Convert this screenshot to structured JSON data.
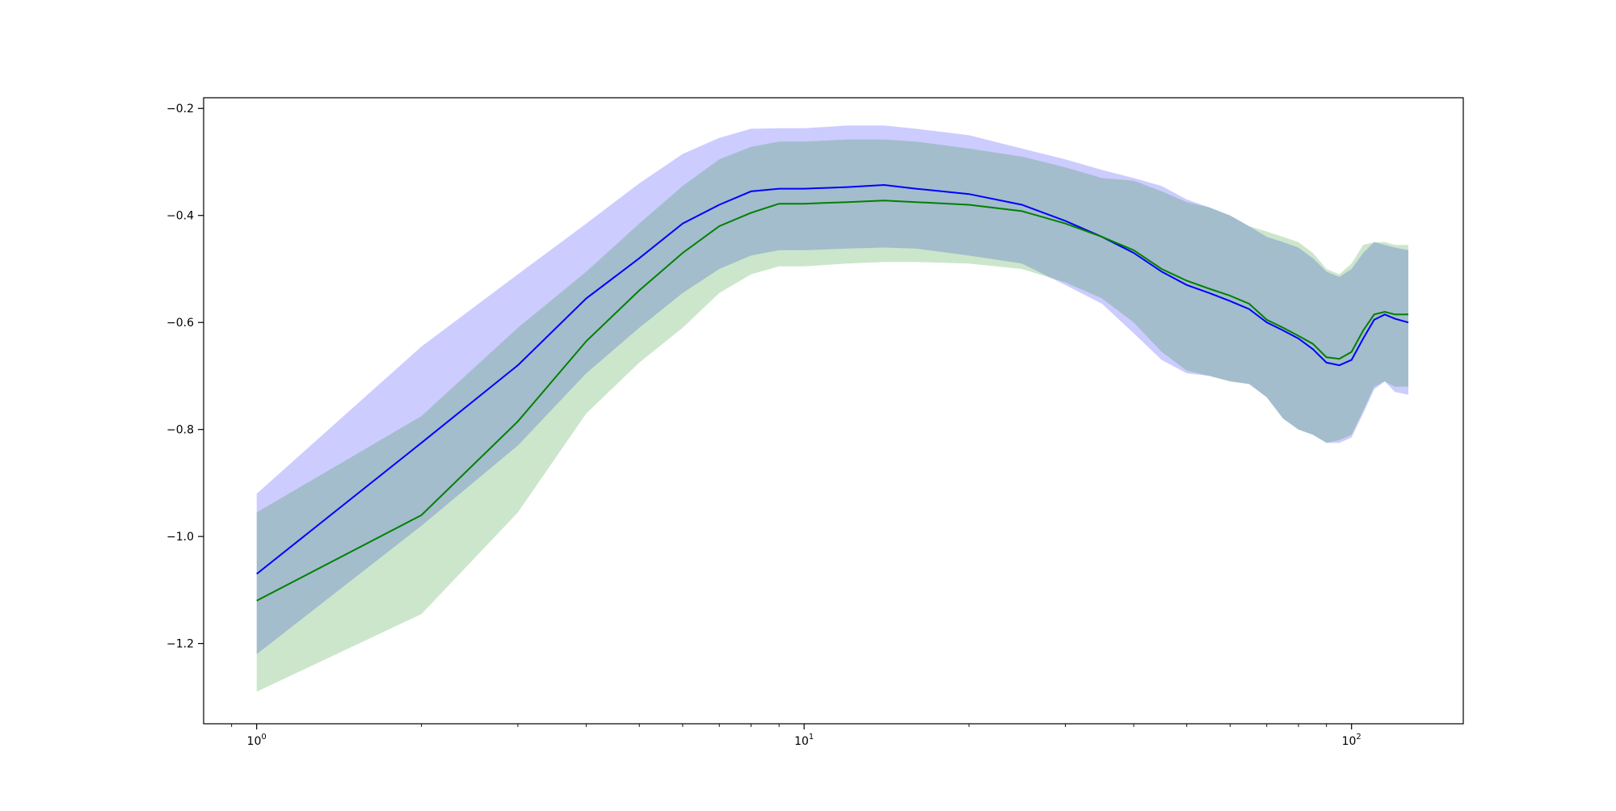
{
  "chart_data": {
    "type": "line",
    "xscale": "log",
    "xlim": [
      0.8,
      160
    ],
    "ylim": [
      -1.35,
      -0.18
    ],
    "grid": false,
    "title": "",
    "xlabel": "",
    "ylabel": "",
    "x_ticks": [
      {
        "value": 1,
        "base": "10",
        "exp": "0"
      },
      {
        "value": 10,
        "base": "10",
        "exp": "1"
      },
      {
        "value": 100,
        "base": "10",
        "exp": "2"
      }
    ],
    "y_ticks": [
      {
        "value": -0.2,
        "label": "−0.2"
      },
      {
        "value": -0.4,
        "label": "−0.4"
      },
      {
        "value": -0.6,
        "label": "−0.6"
      },
      {
        "value": -0.8,
        "label": "−0.8"
      },
      {
        "value": -1.0,
        "label": "−1.0"
      },
      {
        "value": -1.2,
        "label": "−1.2"
      }
    ],
    "series": [
      {
        "color": "#0000ff",
        "band_color": "#0000ff",
        "x": [
          1,
          2,
          3,
          4,
          5,
          6,
          7,
          8,
          9,
          10,
          12,
          14,
          16,
          20,
          25,
          30,
          35,
          40,
          45,
          50,
          55,
          60,
          65,
          70,
          75,
          80,
          85,
          90,
          95,
          100,
          105,
          110,
          115,
          120,
          127
        ],
        "y": [
          -1.07,
          -0.825,
          -0.68,
          -0.555,
          -0.48,
          -0.415,
          -0.38,
          -0.355,
          -0.35,
          -0.35,
          -0.347,
          -0.343,
          -0.35,
          -0.36,
          -0.38,
          -0.41,
          -0.44,
          -0.47,
          -0.505,
          -0.53,
          -0.545,
          -0.56,
          -0.575,
          -0.6,
          -0.615,
          -0.63,
          -0.65,
          -0.675,
          -0.68,
          -0.67,
          -0.63,
          -0.595,
          -0.585,
          -0.593,
          -0.6
        ],
        "lower": [
          -1.22,
          -0.98,
          -0.83,
          -0.695,
          -0.61,
          -0.545,
          -0.5,
          -0.475,
          -0.465,
          -0.465,
          -0.462,
          -0.46,
          -0.462,
          -0.475,
          -0.49,
          -0.53,
          -0.565,
          -0.62,
          -0.67,
          -0.695,
          -0.7,
          -0.71,
          -0.715,
          -0.74,
          -0.78,
          -0.8,
          -0.81,
          -0.825,
          -0.825,
          -0.815,
          -0.77,
          -0.725,
          -0.71,
          -0.73,
          -0.735
        ],
        "upper": [
          -0.92,
          -0.645,
          -0.51,
          -0.415,
          -0.34,
          -0.285,
          -0.255,
          -0.238,
          -0.237,
          -0.237,
          -0.232,
          -0.232,
          -0.238,
          -0.25,
          -0.275,
          -0.295,
          -0.315,
          -0.33,
          -0.345,
          -0.37,
          -0.385,
          -0.4,
          -0.42,
          -0.44,
          -0.45,
          -0.46,
          -0.48,
          -0.505,
          -0.515,
          -0.5,
          -0.47,
          -0.45,
          -0.455,
          -0.46,
          -0.465
        ]
      },
      {
        "color": "#008000",
        "band_color": "#008000",
        "x": [
          1,
          2,
          3,
          4,
          5,
          6,
          7,
          8,
          9,
          10,
          12,
          14,
          16,
          20,
          25,
          30,
          35,
          40,
          45,
          50,
          55,
          60,
          65,
          70,
          75,
          80,
          85,
          90,
          95,
          100,
          105,
          110,
          115,
          120,
          127
        ],
        "y": [
          -1.12,
          -0.96,
          -0.785,
          -0.635,
          -0.54,
          -0.47,
          -0.42,
          -0.395,
          -0.378,
          -0.378,
          -0.375,
          -0.372,
          -0.375,
          -0.38,
          -0.392,
          -0.415,
          -0.44,
          -0.465,
          -0.5,
          -0.522,
          -0.537,
          -0.55,
          -0.565,
          -0.595,
          -0.61,
          -0.625,
          -0.64,
          -0.665,
          -0.668,
          -0.655,
          -0.615,
          -0.585,
          -0.58,
          -0.585,
          -0.585
        ],
        "lower": [
          -1.29,
          -1.145,
          -0.955,
          -0.77,
          -0.675,
          -0.61,
          -0.545,
          -0.51,
          -0.495,
          -0.495,
          -0.49,
          -0.487,
          -0.487,
          -0.49,
          -0.5,
          -0.525,
          -0.555,
          -0.6,
          -0.655,
          -0.69,
          -0.7,
          -0.71,
          -0.715,
          -0.74,
          -0.78,
          -0.8,
          -0.81,
          -0.825,
          -0.82,
          -0.81,
          -0.765,
          -0.72,
          -0.71,
          -0.72,
          -0.72
        ],
        "upper": [
          -0.955,
          -0.775,
          -0.61,
          -0.505,
          -0.415,
          -0.345,
          -0.295,
          -0.272,
          -0.262,
          -0.262,
          -0.258,
          -0.258,
          -0.262,
          -0.275,
          -0.29,
          -0.31,
          -0.33,
          -0.335,
          -0.355,
          -0.375,
          -0.385,
          -0.4,
          -0.42,
          -0.43,
          -0.44,
          -0.45,
          -0.47,
          -0.5,
          -0.51,
          -0.49,
          -0.455,
          -0.45,
          -0.45,
          -0.455,
          -0.455
        ]
      }
    ]
  }
}
